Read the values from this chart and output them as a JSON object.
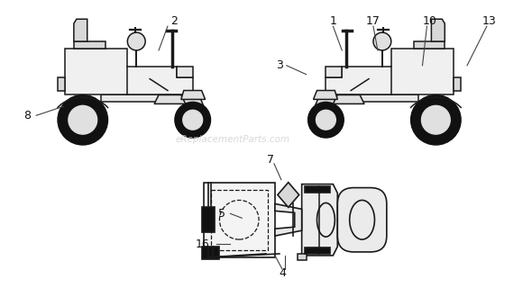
{
  "bg_color": "#ffffff",
  "line_color": "#1a1a1a",
  "fill_dark": "#111111",
  "fill_light": "#f0f0f0",
  "fill_mid": "#d8d8d8",
  "watermark": "eReplacementParts.com",
  "watermark_color": "#cccccc",
  "figsize": [
    5.9,
    3.2
  ],
  "dpi": 100
}
